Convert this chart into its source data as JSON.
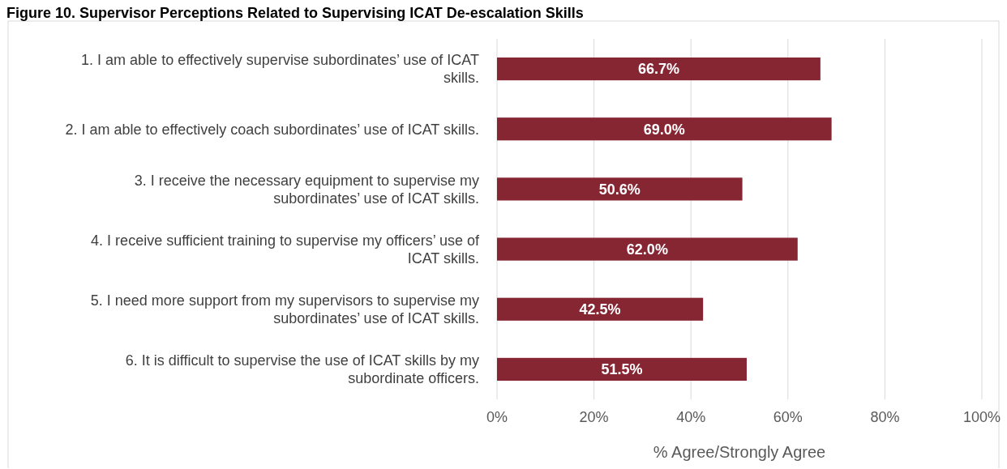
{
  "chart_data": {
    "type": "bar",
    "orientation": "horizontal",
    "title": "Figure 10. Supervisor Perceptions Related to Supervising ICAT De-escalation Skills",
    "categories": [
      "1. I am able to effectively supervise subordinates’ use of ICAT skills.",
      "2. I am able to effectively coach subordinates’ use of ICAT skills.",
      "3. I receive the necessary equipment to supervise my subordinates’ use of ICAT skills.",
      "4. I receive sufficient training to supervise my officers’ use of ICAT skills.",
      "5. I need more support from my supervisors to supervise my subordinates’ use of ICAT skills.",
      "6. It is difficult to supervise the use of ICAT skills by my subordinate officers."
    ],
    "values": [
      66.7,
      69.0,
      50.6,
      62.0,
      42.5,
      51.5
    ],
    "value_labels": [
      "66.7%",
      "69.0%",
      "50.6%",
      "62.0%",
      "42.5%",
      "51.5%"
    ],
    "color": "#862633",
    "xlim": [
      0,
      100
    ],
    "xticks": [
      {
        "value": 0,
        "label": "0%"
      },
      {
        "value": 20,
        "label": "20%"
      },
      {
        "value": 40,
        "label": "40%"
      },
      {
        "value": 60,
        "label": "60%"
      },
      {
        "value": 80,
        "label": "80%"
      },
      {
        "value": 100,
        "label": "100%"
      }
    ],
    "xlabel": "% Agree/Strongly Agree",
    "grid": "x"
  }
}
